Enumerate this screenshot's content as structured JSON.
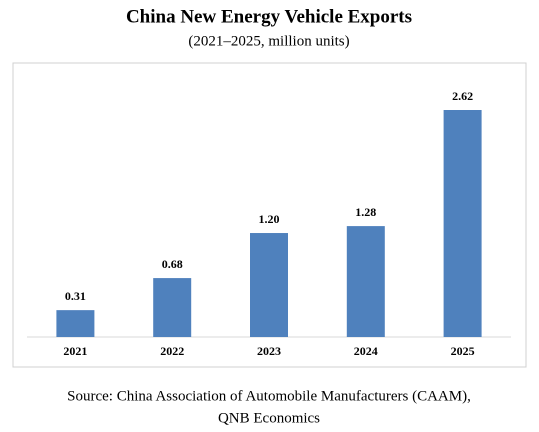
{
  "chart_data": {
    "type": "bar",
    "title": "China New Energy Vehicle Exports",
    "subtitle": "(2021–2025, million units)",
    "categories": [
      "2021",
      "2022",
      "2023",
      "2024",
      "2025"
    ],
    "values": [
      0.31,
      0.68,
      1.2,
      1.28,
      2.62
    ],
    "value_labels": [
      "0.31",
      "0.68",
      "1.20",
      "1.28",
      "2.62"
    ],
    "color": "#4f81bd",
    "source": [
      "Source: China Association of Automobile Manufacturers (CAAM),",
      "QNB Economics"
    ]
  }
}
